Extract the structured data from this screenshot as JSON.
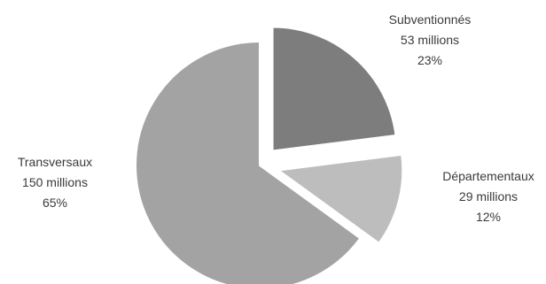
{
  "chart_data": {
    "type": "pie",
    "slices": [
      {
        "label": "Subventionnés",
        "amount": "53 millions",
        "percent": "23%",
        "value": 23,
        "color": "#7d7d7d"
      },
      {
        "label": "Départementaux",
        "amount": "29 millions",
        "percent": "12%",
        "value": 12,
        "color": "#bdbdbd"
      },
      {
        "label": "Transversaux",
        "amount": "150 millions",
        "percent": "65%",
        "value": 65,
        "color": "#a3a3a3"
      }
    ]
  }
}
